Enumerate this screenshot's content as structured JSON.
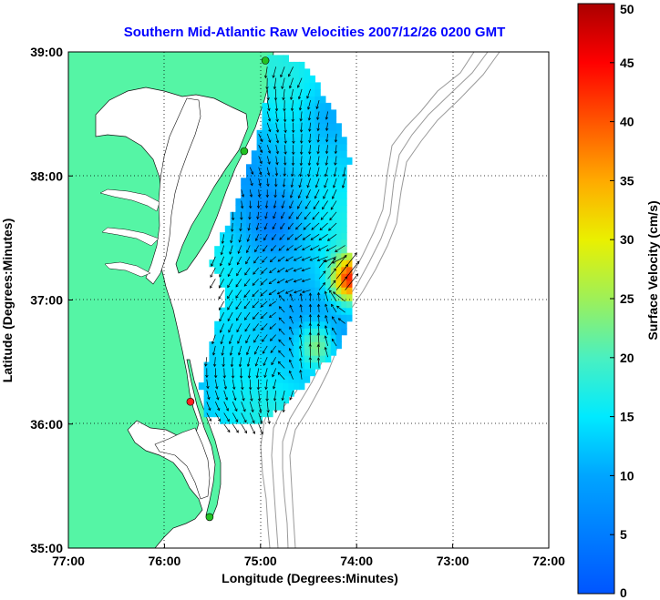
{
  "title": "Southern Mid-Atlantic Raw Velocities 2007/12/26 0200 GMT",
  "xlabel": "Longitude (Degrees:Minutes)",
  "ylabel": "Latitude (Degrees:Minutes)",
  "colorbar_label": "Surface Velocity (cm/s)",
  "x_ticks": [
    {
      "value": -77,
      "label": "77:00"
    },
    {
      "value": -76,
      "label": "76:00"
    },
    {
      "value": -75,
      "label": "75:00"
    },
    {
      "value": -74,
      "label": "74:00"
    },
    {
      "value": -73,
      "label": "73:00"
    },
    {
      "value": -72,
      "label": "72:00"
    }
  ],
  "y_ticks": [
    {
      "value": 39,
      "label": "39:00"
    },
    {
      "value": 38,
      "label": "38:00"
    },
    {
      "value": 37,
      "label": "37:00"
    },
    {
      "value": 36,
      "label": "36:00"
    },
    {
      "value": 35,
      "label": "35:00"
    }
  ],
  "colorbar_ticks": [
    {
      "value": 50,
      "label": "50"
    },
    {
      "value": 45,
      "label": "45"
    },
    {
      "value": 40,
      "label": "40"
    },
    {
      "value": 35,
      "label": "35"
    },
    {
      "value": 30,
      "label": "30"
    },
    {
      "value": 25,
      "label": "25"
    },
    {
      "value": 20,
      "label": "20"
    },
    {
      "value": 15,
      "label": "15"
    },
    {
      "value": 10,
      "label": "10"
    },
    {
      "value": 5,
      "label": "5"
    },
    {
      "value": 0,
      "label": "0"
    }
  ],
  "map": {
    "lon_range": [
      -77,
      -72
    ],
    "lat_range": [
      35,
      39
    ],
    "colorbar_range": [
      0,
      50
    ],
    "grid": true,
    "land_color": "#55f5a5",
    "bathymetry_color": "#9a9a9a",
    "vector_color": "#000000",
    "title_color": "#0000ff",
    "colormap": [
      "#0055ff",
      "#00a5ff",
      "#00eaff",
      "#4af0c0",
      "#9ef058",
      "#eaf000",
      "#ffaa00",
      "#ff5500",
      "#ff0000",
      "#aa0000"
    ],
    "stations": [
      {
        "lon": -74.95,
        "lat": 38.93,
        "color": "#22c122"
      },
      {
        "lon": -75.17,
        "lat": 38.2,
        "color": "#22c122"
      },
      {
        "lon": -75.73,
        "lat": 36.18,
        "color": "#ff2020"
      },
      {
        "lon": -75.53,
        "lat": 35.25,
        "color": "#22c122"
      }
    ]
  }
}
